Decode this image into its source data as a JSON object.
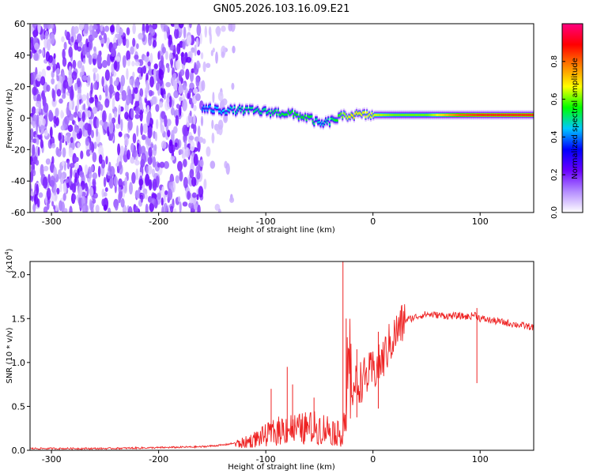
{
  "title": "GN05.2026.103.16.09.E21",
  "chart_data": [
    {
      "type": "heatmap",
      "name": "spectrogram",
      "xlabel": "Height of straight line (km)",
      "ylabel": "Frequency (Hz)",
      "xlim": [
        -320,
        150
      ],
      "ylim": [
        -60,
        60
      ],
      "xticks": [
        -300,
        -200,
        -100,
        0,
        100
      ],
      "xtick_labels": [
        "-300",
        "-200",
        "-100",
        "0",
        "100"
      ],
      "yticks": [
        -60,
        -40,
        -20,
        0,
        20,
        40,
        60
      ],
      "ytick_labels": [
        "-60",
        "-40",
        "-20",
        "0",
        "20",
        "40",
        "60"
      ],
      "colorbar": {
        "label": "Normalized spectral amplitude",
        "range": [
          0,
          1
        ],
        "ticks": [
          0.0,
          0.2,
          0.4,
          0.6,
          0.8
        ],
        "tick_labels": [
          "0.0",
          "0.2",
          "0.4",
          "0.6",
          "0.8"
        ],
        "colormap": [
          "#ffffff",
          "#b48cff",
          "#6a00ff",
          "#0000ff",
          "#00c8ff",
          "#00ff00",
          "#ffff00",
          "#ff8000",
          "#ff0000",
          "#ff0080"
        ]
      },
      "noise_region_x": [
        -320,
        -160
      ],
      "signal_ridge": {
        "x": [
          -160,
          -140,
          -120,
          -100,
          -80,
          -60,
          -50,
          -40,
          -30,
          -20,
          0,
          20,
          50,
          80,
          100,
          150
        ],
        "y": [
          6,
          5,
          5,
          4,
          3,
          0,
          -4,
          -2,
          1,
          2,
          2,
          2,
          2,
          2,
          2,
          2
        ],
        "amplitude": [
          0.4,
          0.45,
          0.5,
          0.5,
          0.55,
          0.55,
          0.45,
          0.5,
          0.6,
          0.7,
          0.65,
          0.6,
          0.6,
          0.8,
          0.85,
          0.85
        ]
      }
    },
    {
      "type": "line",
      "name": "snr",
      "xlabel": "Height of straight line (km)",
      "ylabel": "SNR (10 * v/v)",
      "scale_note": "(x10",
      "scale_exp": "4",
      "scale_close": ")",
      "xlim": [
        -320,
        150
      ],
      "ylim": [
        0,
        2.15
      ],
      "xticks": [
        -300,
        -200,
        -100,
        0,
        100
      ],
      "xtick_labels": [
        "-300",
        "-200",
        "-100",
        "0",
        "100"
      ],
      "yticks": [
        0,
        0.5,
        1.0,
        1.5,
        2.0
      ],
      "ytick_labels": [
        "0.0",
        "0.5",
        "1.0",
        "1.5",
        "2.0"
      ],
      "color": "#ee2222",
      "series": [
        {
          "name": "SNR",
          "x": [
            -320,
            -250,
            -200,
            -160,
            -140,
            -120,
            -110,
            -100,
            -90,
            -80,
            -70,
            -60,
            -50,
            -40,
            -30,
            -25,
            -24,
            -22,
            -20,
            -15,
            -10,
            -5,
            0,
            5,
            10,
            15,
            20,
            25,
            30,
            40,
            50,
            60,
            70,
            80,
            90,
            95,
            100,
            110,
            120,
            130,
            140,
            150
          ],
          "y": [
            0.02,
            0.02,
            0.03,
            0.04,
            0.06,
            0.1,
            0.15,
            0.2,
            0.25,
            0.3,
            0.28,
            0.3,
            0.3,
            0.28,
            0.2,
            0.5,
            0.9,
            1.2,
            0.7,
            0.75,
            0.8,
            0.85,
            0.9,
            0.95,
            1.05,
            1.2,
            1.3,
            1.4,
            1.48,
            1.52,
            1.55,
            1.54,
            1.53,
            1.53,
            1.52,
            1.55,
            1.5,
            1.48,
            1.46,
            1.44,
            1.42,
            1.4
          ]
        }
      ],
      "spikes": [
        {
          "x": -28,
          "y": 2.15
        },
        {
          "x": -25,
          "y": 1.5
        },
        {
          "x": -80,
          "y": 0.95
        },
        {
          "x": -75,
          "y": 0.75
        },
        {
          "x": -95,
          "y": 0.7
        },
        {
          "x": -55,
          "y": 0.6
        },
        {
          "x": -15,
          "y": 1.15
        },
        {
          "x": 5,
          "y": 1.35
        },
        {
          "x": 97,
          "y": 1.62
        }
      ]
    }
  ]
}
